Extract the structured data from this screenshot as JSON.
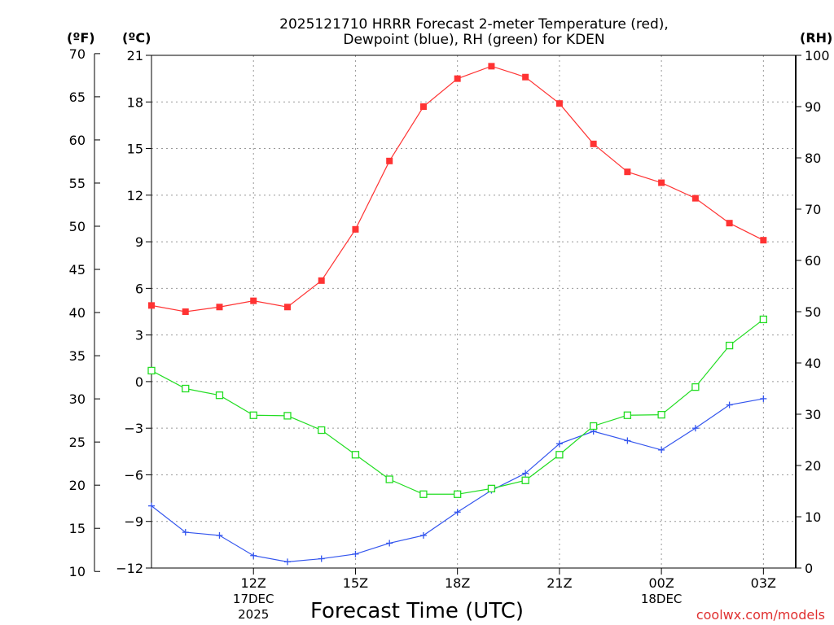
{
  "chart_data": {
    "type": "line",
    "title_line1": "2025121710 HRRR Forecast 2-meter Temperature (red),",
    "title_line2": "Dewpoint (blue), RH (green) for KDEN",
    "xlabel": "Forecast Time (UTC)",
    "credit": "coolwx.com/models",
    "units": {
      "fahrenheit": "(ºF)",
      "celsius": "(ºC)",
      "rh": "(RH)"
    },
    "x_hours": [
      9,
      10,
      11,
      12,
      13,
      14,
      15,
      16,
      17,
      18,
      19,
      20,
      21,
      22,
      23,
      24,
      25,
      26,
      27,
      27.95
    ],
    "x_ticks": [
      {
        "hour": 12,
        "label": "12Z",
        "date": "17DEC",
        "year": "2025"
      },
      {
        "hour": 15,
        "label": "15Z"
      },
      {
        "hour": 18,
        "label": "18Z"
      },
      {
        "hour": 21,
        "label": "21Z"
      },
      {
        "hour": 24,
        "label": "00Z",
        "date": "18DEC"
      },
      {
        "hour": 27,
        "label": "03Z"
      }
    ],
    "xlim": [
      9,
      27.95
    ],
    "celsius_axis": {
      "range": [
        -12,
        21
      ],
      "ticks": [
        -12,
        -9,
        -6,
        -3,
        0,
        3,
        6,
        9,
        12,
        15,
        18,
        21
      ]
    },
    "fahrenheit_axis": {
      "ticks": [
        10,
        15,
        20,
        25,
        30,
        35,
        40,
        45,
        50,
        55,
        60,
        65,
        70
      ]
    },
    "rh_axis": {
      "range": [
        0,
        100
      ],
      "ticks": [
        0,
        10,
        20,
        30,
        40,
        50,
        60,
        70,
        80,
        90,
        100
      ]
    },
    "series": [
      {
        "name": "Temperature",
        "unit": "C",
        "color": "#ff3333",
        "marker": "filled-square",
        "values": [
          4.9,
          4.5,
          4.8,
          5.2,
          4.8,
          6.5,
          9.8,
          14.2,
          17.7,
          19.5,
          20.3,
          19.6,
          17.9,
          15.3,
          13.5,
          12.8,
          11.8,
          10.2,
          9.1
        ]
      },
      {
        "name": "Dewpoint",
        "unit": "C",
        "color": "#3355ee",
        "marker": "plus",
        "values": [
          -8.0,
          -9.7,
          -9.9,
          -11.2,
          -11.6,
          -11.4,
          -11.1,
          -10.4,
          -9.9,
          -8.4,
          -7.0,
          -5.9,
          -4.0,
          -3.2,
          -3.8,
          -4.4,
          -3.0,
          -1.5,
          -1.1
        ]
      },
      {
        "name": "RH",
        "unit": "%",
        "color": "#22dd22",
        "marker": "open-square",
        "values": [
          38.5,
          35.0,
          33.7,
          29.8,
          29.7,
          26.9,
          22.1,
          17.3,
          14.4,
          14.4,
          15.5,
          17.1,
          22.1,
          27.7,
          29.8,
          29.9,
          35.3,
          43.4,
          48.5
        ]
      }
    ]
  }
}
